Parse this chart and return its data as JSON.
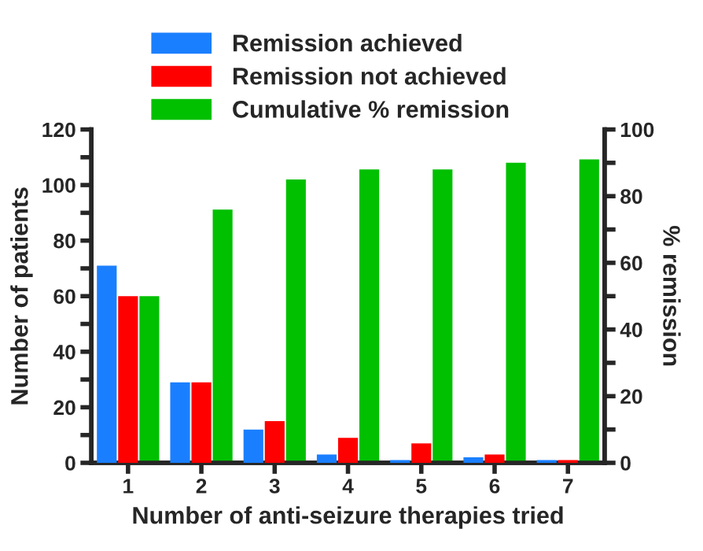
{
  "chart_data": {
    "type": "bar",
    "xlabel": "Number of anti-seizure therapies tried",
    "ylabel": "Number of patients",
    "y2label": "% remission",
    "categories": [
      "1",
      "2",
      "3",
      "4",
      "5",
      "6",
      "7"
    ],
    "series": [
      {
        "name": "Remission achieved",
        "color": "#1a7fff",
        "values": [
          71,
          29,
          12,
          3,
          1,
          2,
          1
        ]
      },
      {
        "name": "Remission not achieved",
        "color": "#ff0000",
        "values": [
          60,
          29,
          15,
          9,
          7,
          3,
          1
        ]
      },
      {
        "name": "Cumulative % remission",
        "color": "#00c000",
        "axis": "y2",
        "values": [
          50,
          76,
          85,
          88,
          88,
          90,
          91
        ]
      }
    ],
    "ylim": [
      0,
      120
    ],
    "yticks": [
      0,
      {
        "value": 10,
        "label": null
      },
      20,
      {
        "value": 30,
        "label": null
      },
      40,
      {
        "value": 50,
        "label": null
      },
      60,
      {
        "value": 70,
        "label": null
      },
      80,
      {
        "value": 90,
        "label": null
      },
      100,
      {
        "value": 110,
        "label": null
      },
      120
    ],
    "y2lim": [
      0,
      100
    ],
    "y2ticks": [
      0,
      {
        "value": 10,
        "label": null
      },
      20,
      {
        "value": 30,
        "label": null
      },
      40,
      {
        "value": 50,
        "label": null
      },
      60,
      {
        "value": 70,
        "label": null
      },
      80,
      {
        "value": 90,
        "label": null
      },
      100
    ],
    "legend": "top left",
    "grid": false
  }
}
